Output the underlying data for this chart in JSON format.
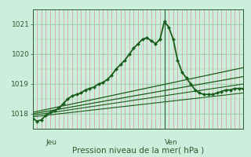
{
  "background_color": "#cceedd",
  "plot_bg_color": "#cceedd",
  "grid_color_v": "#e08080",
  "grid_color_h": "#99ccaa",
  "axis_color": "#2d5a2d",
  "text_color": "#2d5a2d",
  "xlabel": "Pression niveau de la mer( hPa )",
  "ylim": [
    1017.5,
    1021.5
  ],
  "yticks": [
    1018,
    1019,
    1020,
    1021
  ],
  "xlim": [
    0,
    48
  ],
  "x_jeu_tick": 3,
  "x_ven_tick": 30,
  "vline_x": 30,
  "n_vgrid": 48,
  "n_hgrid": 4,
  "main_series": {
    "x": [
      0,
      1,
      2,
      3,
      4,
      5,
      6,
      7,
      8,
      9,
      10,
      11,
      12,
      13,
      14,
      15,
      16,
      17,
      18,
      19,
      20,
      21,
      22,
      23,
      24,
      25,
      26,
      27,
      28,
      29,
      30,
      31,
      32,
      33,
      34,
      35,
      36,
      37,
      38,
      39,
      40,
      41,
      42,
      43,
      44,
      45,
      46,
      47,
      48
    ],
    "y": [
      1017.85,
      1017.75,
      1017.8,
      1017.95,
      1018.05,
      1018.1,
      1018.2,
      1018.35,
      1018.5,
      1018.6,
      1018.65,
      1018.7,
      1018.8,
      1018.85,
      1018.9,
      1019.0,
      1019.05,
      1019.15,
      1019.3,
      1019.5,
      1019.65,
      1019.8,
      1020.0,
      1020.2,
      1020.35,
      1020.5,
      1020.55,
      1020.45,
      1020.35,
      1020.5,
      1021.1,
      1020.9,
      1020.5,
      1019.8,
      1019.4,
      1019.2,
      1019.0,
      1018.8,
      1018.7,
      1018.65,
      1018.65,
      1018.65,
      1018.7,
      1018.75,
      1018.8,
      1018.8,
      1018.85,
      1018.85,
      1018.85
    ],
    "color": "#1a5c1a",
    "lw": 1.3,
    "marker": "D",
    "ms": 2.0
  },
  "straight_lines": [
    {
      "x": [
        0,
        48
      ],
      "y": [
        1018.05,
        1019.55
      ],
      "color": "#1a5c1a",
      "lw": 0.9
    },
    {
      "x": [
        0,
        48
      ],
      "y": [
        1018.0,
        1019.25
      ],
      "color": "#1a5c1a",
      "lw": 0.9
    },
    {
      "x": [
        0,
        48
      ],
      "y": [
        1017.95,
        1019.0
      ],
      "color": "#1a5c1a",
      "lw": 0.8
    },
    {
      "x": [
        0,
        48
      ],
      "y": [
        1017.9,
        1018.7
      ],
      "color": "#1a5c1a",
      "lw": 0.8
    }
  ],
  "label_fontsize": 6.5,
  "xlabel_fontsize": 7.5
}
